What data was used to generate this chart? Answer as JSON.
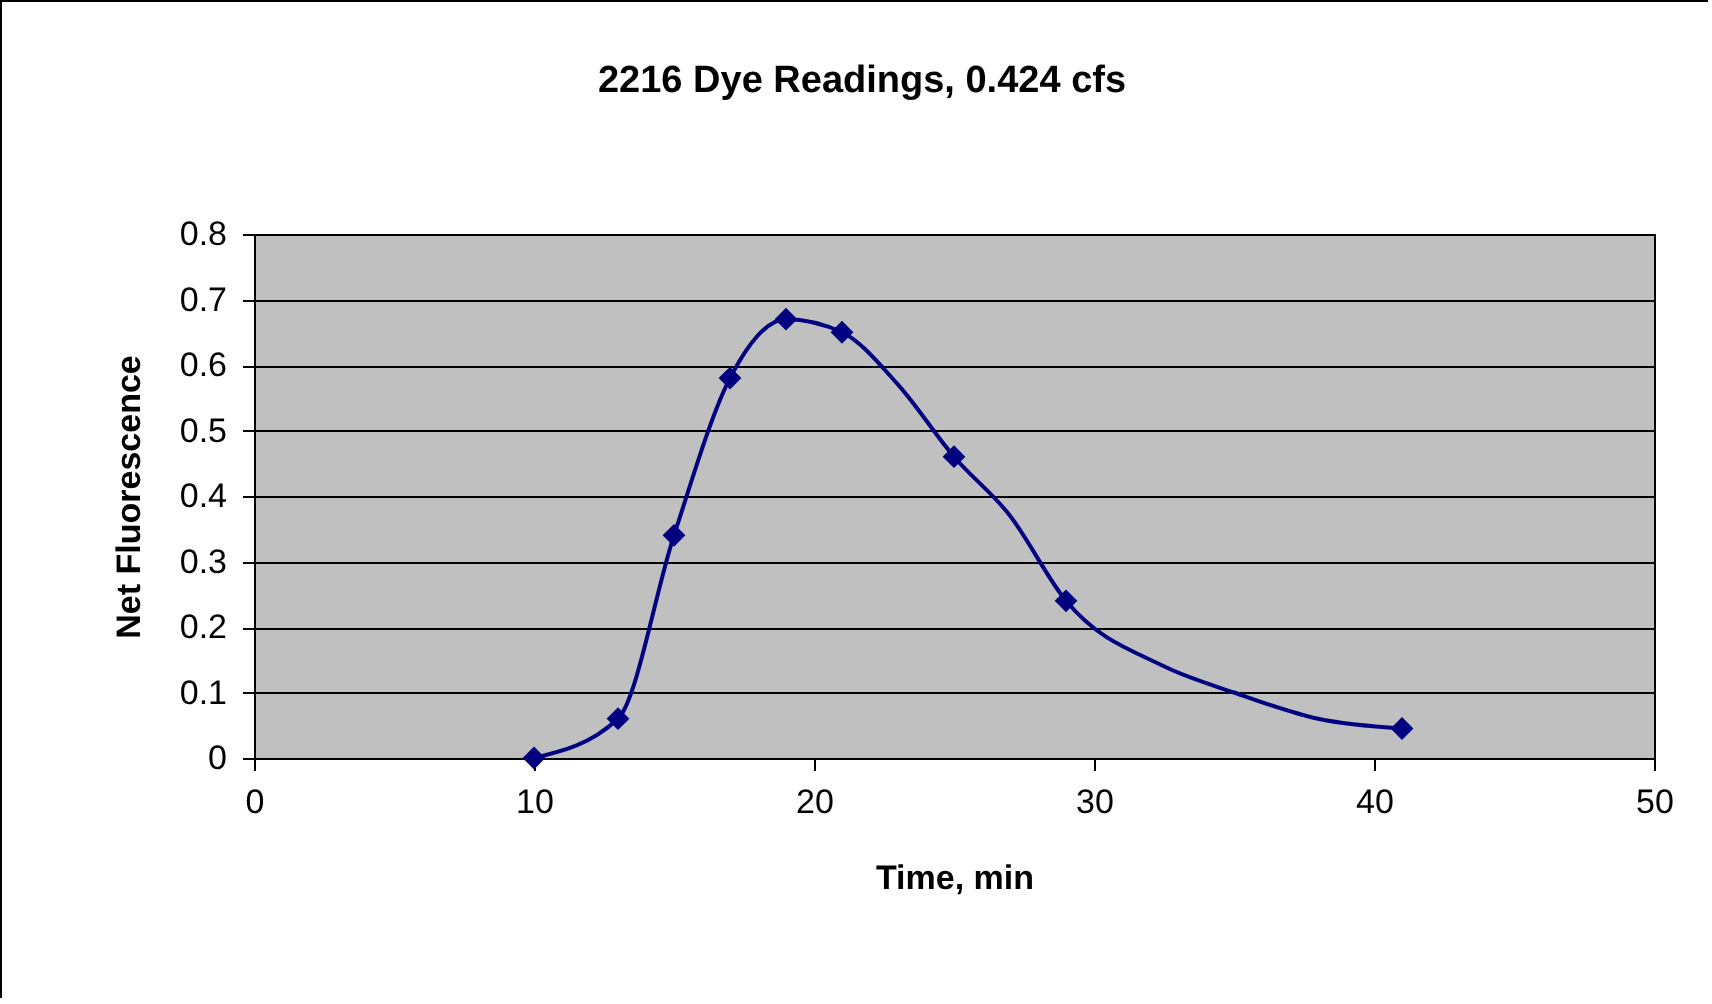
{
  "chart_data": {
    "type": "line",
    "title": "2216 Dye Readings, 0.424 cfs",
    "xlabel": "Time, min",
    "ylabel": "Net Fluorescence",
    "xlim": [
      0,
      50
    ],
    "xticks": [
      0,
      10,
      20,
      30,
      40,
      50
    ],
    "ylim": [
      0,
      0.8
    ],
    "yticks": [
      0,
      0.1,
      0.2,
      0.3,
      0.4,
      0.5,
      0.6,
      0.7,
      0.8
    ],
    "grid": "y",
    "series": [
      {
        "marker": "none",
        "color": "#000080",
        "x": [
          10,
          13,
          15,
          17,
          19,
          21,
          23,
          25,
          27,
          29,
          32.5,
          35,
          38,
          41
        ],
        "values": [
          0,
          0.06,
          0.34,
          0.58,
          0.67,
          0.65,
          0.57,
          0.46,
          0.37,
          0.24,
          0.14,
          0.1,
          0.06,
          0.045
        ]
      },
      {
        "type": "scatter",
        "marker": "diamond",
        "color": "#000080",
        "x": [
          10,
          13,
          15,
          17,
          19,
          21,
          25,
          29,
          41
        ],
        "values": [
          0,
          0.06,
          0.34,
          0.58,
          0.67,
          0.65,
          0.46,
          0.24,
          0.045
        ]
      }
    ]
  }
}
